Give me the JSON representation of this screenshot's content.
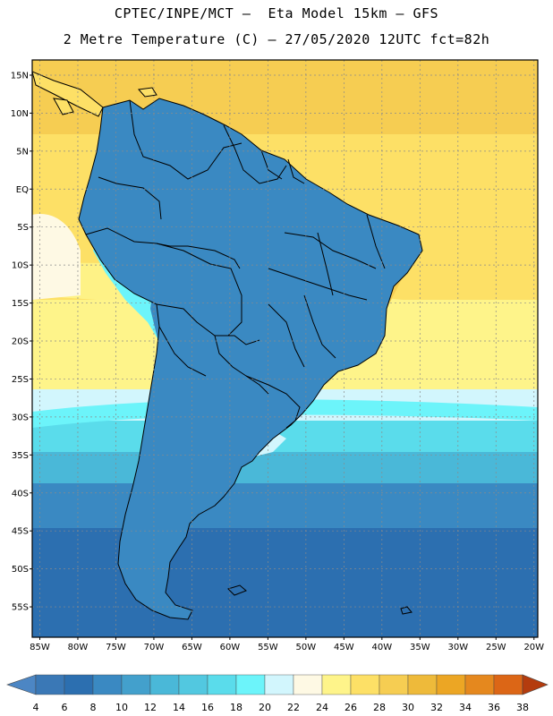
{
  "title": {
    "line1": "CPTEC/INPE/MCT –  Eta Model 15km – GFS",
    "line2": "2 Metre Temperature (C) – 27/05/2020 12UTC fct=82h"
  },
  "map": {
    "region": "South America",
    "lat_labels": [
      "15N",
      "10N",
      "5N",
      "EQ",
      "5S",
      "10S",
      "15S",
      "20S",
      "25S",
      "30S",
      "35S",
      "40S",
      "45S",
      "50S",
      "55S"
    ],
    "lon_labels": [
      "85W",
      "80W",
      "75W",
      "70W",
      "65W",
      "60W",
      "55W",
      "50W",
      "45W",
      "40W",
      "35W",
      "30W",
      "25W",
      "20W"
    ],
    "lat_range": [
      17,
      -59
    ],
    "lon_range": [
      -86,
      -19.5
    ]
  },
  "colorbar": {
    "labels": [
      "4",
      "6",
      "8",
      "10",
      "12",
      "14",
      "16",
      "18",
      "20",
      "22",
      "24",
      "26",
      "28",
      "30",
      "32",
      "34",
      "36",
      "38"
    ],
    "colors": [
      "#3a78b6",
      "#2c6fb0",
      "#3a89c2",
      "#43a0cc",
      "#4ab8d8",
      "#52c8e0",
      "#5adceb",
      "#6cf4fa",
      "#d2f6fd",
      "#fef9e4",
      "#fef48a",
      "#fde066",
      "#f6cd52",
      "#eeba3a",
      "#eca624",
      "#e5881e",
      "#dc6616",
      "#c84c0e",
      "#b43c0e"
    ],
    "under_color": "#4c86c4",
    "over_color": "#b43c0e"
  }
}
